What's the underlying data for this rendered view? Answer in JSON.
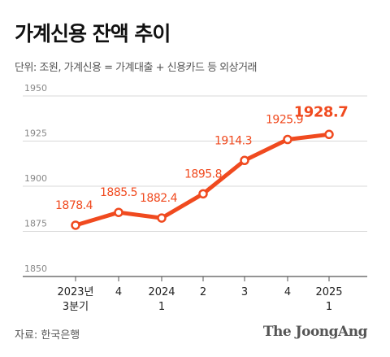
{
  "title": "가계신용 잔액 추이",
  "subtitle": "단위: 조원, 가계신용 = 가계대출 + 신용카드 등 외상거래",
  "source": "자료: 한국은행",
  "logo_text": "The JoongAng",
  "colors": {
    "line": "#f04a1f",
    "grid": "#d8d8d8",
    "axis": "#555555"
  },
  "chart_data": {
    "type": "line",
    "categories": [
      [
        "2023년",
        "3분기"
      ],
      [
        "4"
      ],
      [
        "2024",
        "1"
      ],
      [
        "2"
      ],
      [
        "3"
      ],
      [
        "4"
      ],
      [
        "2025",
        "1"
      ]
    ],
    "values": [
      1878.4,
      1885.5,
      1882.4,
      1895.8,
      1914.3,
      1925.9,
      1928.7
    ],
    "labels": [
      "1878.4",
      "1885.5",
      "1882.4",
      "1895.8",
      "1914.3",
      "1925.9",
      "1928.7"
    ],
    "ylim": [
      1850,
      1950
    ],
    "yticks": [
      1850,
      1875,
      1900,
      1925,
      1950
    ],
    "grid": true,
    "highlight_last": true
  }
}
